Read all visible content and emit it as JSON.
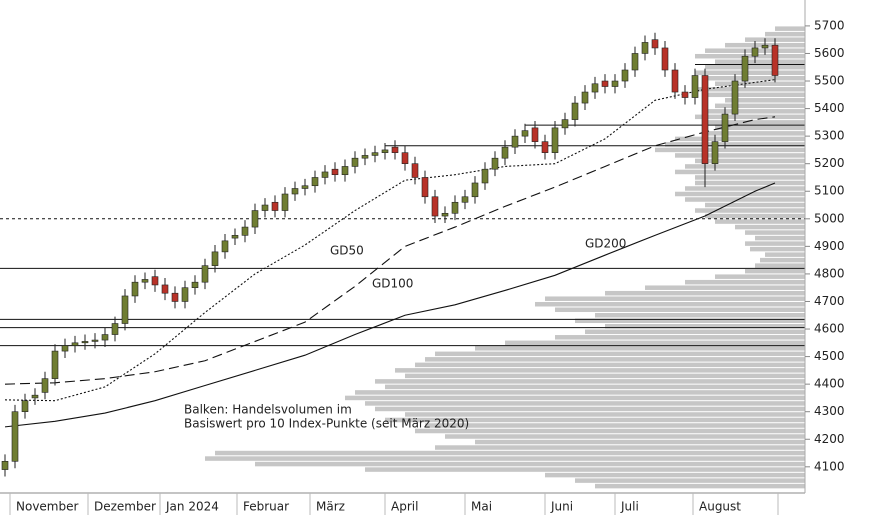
{
  "chart_data": {
    "type": "candlestick",
    "x_labels": [
      "November",
      "Dezember",
      "Jan 2024",
      "Februar",
      "März",
      "April",
      "Mai",
      "Juni",
      "Juli",
      "August"
    ],
    "open": [
      4090,
      4120,
      4300,
      4350,
      4370,
      4420,
      4520,
      4540,
      4550,
      4555,
      4560,
      4580,
      4620,
      4720,
      4770,
      4790,
      4760,
      4730,
      4700,
      4750,
      4770,
      4830,
      4880,
      4930,
      4940,
      4970,
      5030,
      5060,
      5030,
      5090,
      5110,
      5120,
      5150,
      5180,
      5160,
      5190,
      5220,
      5230,
      5240,
      5260,
      5240,
      5200,
      5150,
      5080,
      5010,
      5020,
      5060,
      5080,
      5130,
      5180,
      5220,
      5260,
      5300,
      5330,
      5280,
      5240,
      5330,
      5360,
      5420,
      5460,
      5500,
      5480,
      5500,
      5540,
      5600,
      5650,
      5620,
      5540,
      5460,
      5440,
      5520,
      5200,
      5280,
      5380,
      5500,
      5590,
      5620,
      5630
    ],
    "high": [
      4145,
      4325,
      4365,
      4385,
      4445,
      4545,
      4565,
      4575,
      4580,
      4585,
      4605,
      4645,
      4745,
      4795,
      4805,
      4815,
      4785,
      4755,
      4775,
      4795,
      4855,
      4905,
      4945,
      4965,
      4995,
      5055,
      5075,
      5085,
      5115,
      5135,
      5145,
      5175,
      5195,
      5205,
      5215,
      5245,
      5255,
      5265,
      5275,
      5285,
      5265,
      5225,
      5175,
      5105,
      5045,
      5085,
      5105,
      5155,
      5205,
      5245,
      5285,
      5325,
      5345,
      5355,
      5305,
      5355,
      5385,
      5445,
      5485,
      5515,
      5525,
      5525,
      5565,
      5625,
      5665,
      5675,
      5645,
      5565,
      5485,
      5545,
      5545,
      5305,
      5405,
      5525,
      5615,
      5645,
      5655,
      5655
    ],
    "low": [
      4065,
      4095,
      4275,
      4325,
      4345,
      4395,
      4495,
      4515,
      4525,
      4530,
      4535,
      4555,
      4595,
      4695,
      4745,
      4735,
      4705,
      4675,
      4675,
      4725,
      4745,
      4805,
      4855,
      4905,
      4915,
      4945,
      5005,
      5005,
      5005,
      5065,
      5085,
      5095,
      5125,
      5135,
      5135,
      5165,
      5195,
      5205,
      5215,
      5215,
      5175,
      5125,
      5055,
      4985,
      4985,
      4995,
      5035,
      5055,
      5105,
      5155,
      5195,
      5235,
      5275,
      5255,
      5215,
      5215,
      5305,
      5335,
      5395,
      5435,
      5455,
      5455,
      5475,
      5515,
      5575,
      5595,
      5515,
      5435,
      5415,
      5415,
      5115,
      5175,
      5255,
      5355,
      5475,
      5565,
      5595,
      5495
    ],
    "close": [
      4120,
      4300,
      4340,
      4360,
      4420,
      4520,
      4540,
      4550,
      4555,
      4560,
      4580,
      4620,
      4720,
      4770,
      4780,
      4760,
      4730,
      4700,
      4750,
      4770,
      4830,
      4880,
      4920,
      4940,
      4970,
      5030,
      5050,
      5030,
      5090,
      5110,
      5120,
      5150,
      5170,
      5160,
      5190,
      5220,
      5230,
      5240,
      5250,
      5240,
      5200,
      5150,
      5080,
      5010,
      5020,
      5060,
      5080,
      5130,
      5180,
      5220,
      5260,
      5300,
      5320,
      5280,
      5240,
      5330,
      5360,
      5420,
      5460,
      5490,
      5480,
      5500,
      5540,
      5600,
      5640,
      5620,
      5540,
      5460,
      5440,
      5520,
      5200,
      5280,
      5380,
      5500,
      5590,
      5620,
      5630,
      5520
    ],
    "up_color": "#6f7d32",
    "down_color": "#b83228",
    "ylim": [
      4005,
      5794
    ],
    "yticks": [
      4100,
      4200,
      4300,
      4400,
      4500,
      4600,
      4700,
      4800,
      4900,
      5000,
      5100,
      5200,
      5300,
      5400,
      5500,
      5600,
      5700
    ],
    "ma_x": [
      0,
      5,
      10,
      15,
      20,
      25,
      30,
      35,
      40,
      45,
      50,
      55,
      60,
      65,
      70,
      75,
      77
    ],
    "moving_averages": [
      {
        "name": "GD50",
        "dash": "2,2",
        "values": [
          4343,
          4340,
          4390,
          4510,
          4660,
          4800,
          4905,
          5030,
          5140,
          5160,
          5190,
          5200,
          5290,
          5430,
          5470,
          5495,
          5505
        ]
      },
      {
        "name": "GD100",
        "dash": "10,5",
        "values": [
          4400,
          4405,
          4420,
          4445,
          4485,
          4555,
          4625,
          4755,
          4900,
          4970,
          5045,
          5115,
          5190,
          5265,
          5315,
          5360,
          5370
        ]
      },
      {
        "name": "GD200",
        "dash": "none",
        "values": [
          4245,
          4265,
          4295,
          4340,
          4395,
          4450,
          4505,
          4580,
          4650,
          4688,
          4740,
          4795,
          4868,
          4940,
          5010,
          5100,
          5130
        ]
      }
    ],
    "levels": [
      {
        "value": 5560,
        "dashed": false
      },
      {
        "value": 5340,
        "dashed": false
      },
      {
        "value": 5265,
        "dashed": false
      },
      {
        "value": 5000,
        "dashed": true
      },
      {
        "value": 4820,
        "dashed": false
      },
      {
        "value": 4635,
        "dashed": false
      },
      {
        "value": 4605,
        "dashed": false
      },
      {
        "value": 4540,
        "dashed": false
      }
    ],
    "volume_profile": {
      "color": "#c6c6c6",
      "bins": [
        4020,
        4040,
        4060,
        4080,
        4100,
        4120,
        4140,
        4160,
        4180,
        4200,
        4220,
        4240,
        4260,
        4280,
        4300,
        4320,
        4340,
        4360,
        4380,
        4400,
        4420,
        4440,
        4460,
        4480,
        4500,
        4520,
        4540,
        4560,
        4580,
        4600,
        4620,
        4640,
        4660,
        4680,
        4700,
        4720,
        4740,
        4760,
        4780,
        4800,
        4820,
        4840,
        4860,
        4880,
        4900,
        4920,
        4940,
        4960,
        4980,
        5000,
        5020,
        5040,
        5060,
        5080,
        5100,
        5120,
        5140,
        5160,
        5180,
        5200,
        5220,
        5240,
        5260,
        5280,
        5300,
        5320,
        5340,
        5360,
        5380,
        5400,
        5420,
        5440,
        5460,
        5480,
        5500,
        5520,
        5540,
        5560,
        5580,
        5600,
        5620,
        5640,
        5660,
        5680,
        5700
      ],
      "counts": [
        210,
        230,
        260,
        440,
        550,
        600,
        590,
        370,
        330,
        360,
        390,
        380,
        420,
        400,
        430,
        440,
        460,
        450,
        420,
        430,
        400,
        410,
        390,
        380,
        370,
        330,
        300,
        250,
        220,
        200,
        230,
        210,
        250,
        270,
        260,
        200,
        160,
        120,
        90,
        60,
        50,
        45,
        40,
        55,
        60,
        50,
        60,
        70,
        90,
        100,
        110,
        100,
        120,
        130,
        120,
        110,
        110,
        130,
        120,
        110,
        130,
        150,
        140,
        130,
        100,
        90,
        100,
        110,
        100,
        90,
        80,
        100,
        110,
        90,
        100,
        110,
        100,
        90,
        110,
        100,
        80,
        60,
        40,
        30
      ]
    },
    "annotation": [
      "Balken: Handelsvolumen im",
      "Basiswert pro 10 Index-Punkte (seit März 2020)"
    ]
  }
}
